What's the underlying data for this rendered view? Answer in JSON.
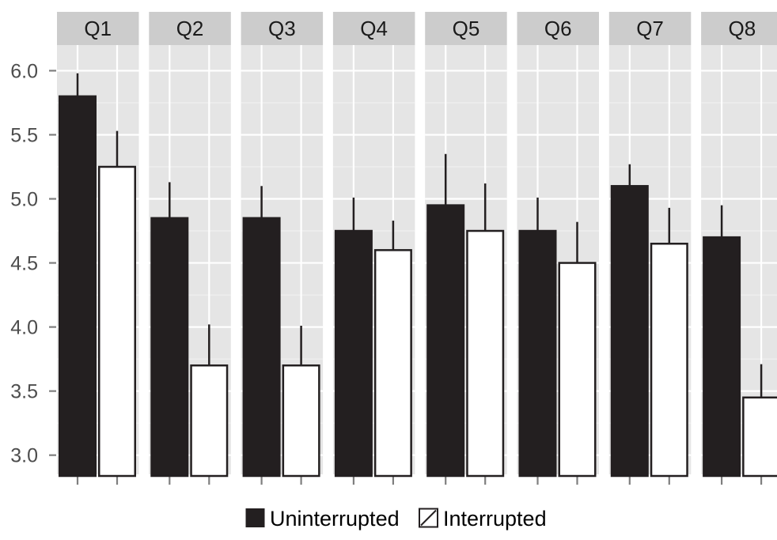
{
  "chart_data": {
    "type": "bar",
    "facets": [
      "Q1",
      "Q2",
      "Q3",
      "Q4",
      "Q5",
      "Q6",
      "Q7",
      "Q8"
    ],
    "series": [
      {
        "name": "Uninterrupted",
        "color": "#231f20",
        "values": [
          5.8,
          4.85,
          4.85,
          4.75,
          4.95,
          4.75,
          5.1,
          4.7
        ],
        "error_upper": [
          5.98,
          5.13,
          5.1,
          5.01,
          5.35,
          5.01,
          5.27,
          4.95
        ]
      },
      {
        "name": "Interrupted",
        "color": "#ffffff",
        "values": [
          5.25,
          3.7,
          3.7,
          4.6,
          4.75,
          4.5,
          4.65,
          3.45
        ],
        "error_upper": [
          5.53,
          4.02,
          4.01,
          4.83,
          5.12,
          4.82,
          4.93,
          3.71
        ]
      }
    ],
    "y_ticks": [
      "3.0",
      "3.5",
      "4.0",
      "4.5",
      "5.0",
      "5.5",
      "6.0"
    ],
    "ylim": [
      2.85,
      6.2
    ],
    "xlabel": "",
    "ylabel": "",
    "title": "",
    "grid": true,
    "legend_position": "bottom",
    "colors": {
      "panel_background": "#e5e5e5",
      "strip_background": "#cccccc",
      "gridline": "#ffffff",
      "tick": "#7f7f7f"
    }
  }
}
